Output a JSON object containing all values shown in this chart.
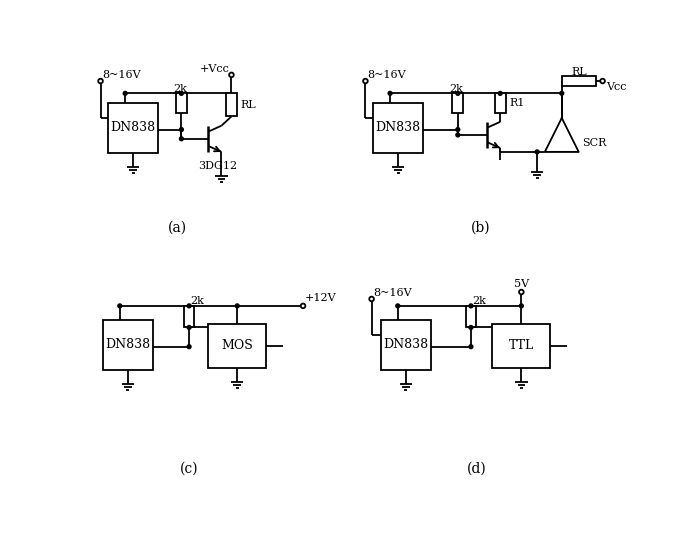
{
  "bg_color": "#ffffff",
  "line_color": "#000000",
  "line_width": 1.3,
  "font_size": 9,
  "labels": {
    "a_v1": "8~16V",
    "a_vcc": "+Vcc",
    "a_r": "2k",
    "a_rl": "RL",
    "a_ic": "DN838",
    "a_tr": "3DG12",
    "b_v1": "8~16V",
    "b_r": "2k",
    "b_r1": "R1",
    "b_ic": "DN838",
    "b_scr": "SCR",
    "b_rl": "RL",
    "b_vcc": "Vcc",
    "c_vcc": "+12V",
    "c_r": "2k",
    "c_ic": "DN838",
    "c_mos": "MOS",
    "d_v1": "8~16V",
    "d_vcc": "5V",
    "d_r": "2k",
    "d_ic": "DN838",
    "d_ttl": "TTL",
    "a_label": "(a)",
    "b_label": "(b)",
    "c_label": "(c)",
    "d_label": "(d)"
  }
}
